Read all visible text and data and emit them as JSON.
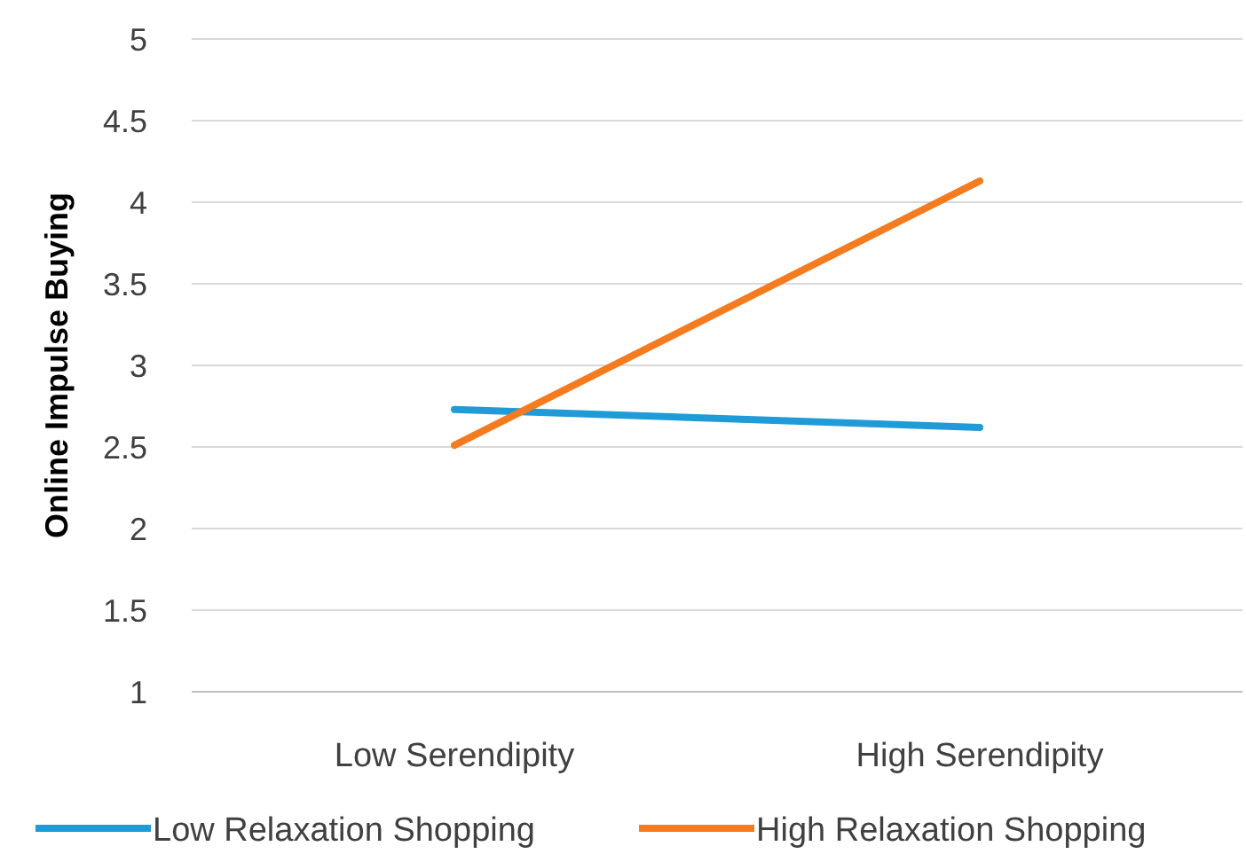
{
  "chart_data": {
    "type": "line",
    "ylabel": "Online Impulse Buying",
    "categories": [
      "Low Serendipity",
      "High Serendipity"
    ],
    "series": [
      {
        "name": "Low Relaxation Shopping",
        "color": "#1f9bd7",
        "values": [
          2.73,
          2.62
        ]
      },
      {
        "name": "High Relaxation Shopping",
        "color": "#f47b20",
        "values": [
          2.51,
          4.13
        ]
      }
    ],
    "ylim": [
      1,
      5
    ],
    "yticks": [
      1,
      1.5,
      2,
      2.5,
      3,
      3.5,
      4,
      4.5,
      5
    ],
    "grid": "y",
    "legend": "bottom",
    "marker": "none",
    "line_style": "solid"
  }
}
